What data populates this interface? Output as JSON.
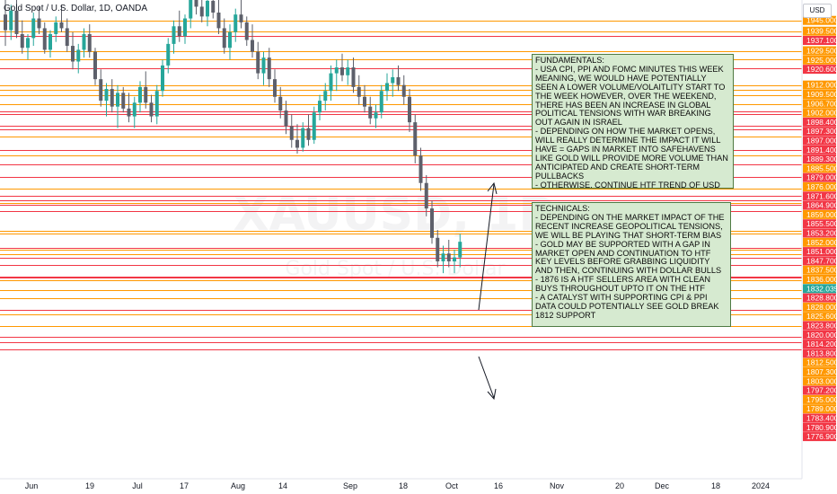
{
  "header": {
    "title": "Gold Spot / U.S. Dollar, 1D, OANDA",
    "currency": "USD"
  },
  "watermark": {
    "symbol": "XAUUSD, 1D",
    "name": "Gold Spot / U.S. Dollar"
  },
  "notes": {
    "fundamentals": "FUNDAMENTALS:\n- USA CPI, PPI AND FOMC MINUTES THIS WEEK MEANING, WE WOULD HAVE POTENTIALLY SEEN A LOWER VOLUME/VOLAITLITY START TO THE WEEK HOWEVER, OVER THE WEEKEND, THERE HAS BEEN AN INCREASE IN GLOBAL POLITICAL TENSIONS WITH WAR BREAKING OUT AGAIN IN ISRAEL\n- DEPENDING ON HOW THE MARKET OPENS, WILL REALLY DETERMINE THE IMPACT IT WILL HAVE = GAPS IN MARKET INTO SAFEHAVENS LIKE GOLD WILL PROVIDE MORE VOLUME THAN ANTICIPATED AND CREATE SHORT-TERM PULLBACKS\n- OTHERWISE, CONTINUE HTF TREND OF USD BULLS",
    "technicals": "TECHNICALS:\n- DEPENDING ON THE MARKET IMPACT OF THE RECENT INCREASE GEOPOLITICAL TENSIONS, WE WILL BE PLAYING THAT SHORT-TERM BIAS\n- GOLD MAY BE SUPPORTED WITH A GAP IN MARKET OPEN AND CONTINUATION TO HTF KEY LEVELS BEFORE GRABBING LIQUIDITY AND THEN, CONTINUING WITH DOLLAR BULLS\n- 1876 IS A HTF SELLERS AREA WITH CLEAN BUYS THROUGHOUT UPTO IT ON THE HTF\n- A CATALYST WITH SUPPORTING CPI & PPI DATA COULD POTENTIALLY SEE GOLD BREAK 1812 SUPPORT"
  },
  "chart_data": {
    "type": "candlestick",
    "title": "Gold Spot / U.S. Dollar, 1D, OANDA",
    "ylim": [
      1774,
      1960
    ],
    "price_labels": [
      "1945.000",
      "1939.500",
      "1937.100",
      "1929.500",
      "1925.000",
      "1920.600",
      "1912.000",
      "1909.500",
      "1906.700",
      "1902.000",
      "1898.400",
      "1897.300",
      "1897.000",
      "1891.400",
      "1889.300",
      "1885.500",
      "1879.000",
      "1876.000",
      "1871.600",
      "1864.900",
      "1859.000",
      "1855.500",
      "1853.200",
      "1852.000",
      "1851.000",
      "1847.700",
      "1837.500",
      "1836.000",
      "1832.035",
      "1828.800",
      "1828.000",
      "1825.600",
      "1823.800",
      "1820.000",
      "1814.200",
      "1813.800",
      "1812.500",
      "1807.300",
      "1803.000",
      "1797.200",
      "1795.000",
      "1789.000",
      "1783.400",
      "1780.900",
      "1776.900"
    ],
    "levels": [
      {
        "price": 1945.0,
        "color": "#ff9800"
      },
      {
        "price": 1939.5,
        "color": "#ff9800"
      },
      {
        "price": 1937.1,
        "color": "#f23645"
      },
      {
        "price": 1929.5,
        "color": "#ff9800"
      },
      {
        "price": 1925.0,
        "color": "#ff9800"
      },
      {
        "price": 1920.6,
        "color": "#f23645"
      },
      {
        "price": 1912.0,
        "color": "#ff9800"
      },
      {
        "price": 1909.5,
        "color": "#ff9800"
      },
      {
        "price": 1906.7,
        "color": "#ff9800"
      },
      {
        "price": 1902.0,
        "color": "#ff9800"
      },
      {
        "price": 1898.4,
        "color": "#f23645"
      },
      {
        "price": 1897.3,
        "color": "#f23645"
      },
      {
        "price": 1897.0,
        "color": "#f23645"
      },
      {
        "price": 1891.4,
        "color": "#f23645"
      },
      {
        "price": 1889.3,
        "color": "#f23645"
      },
      {
        "price": 1885.5,
        "color": "#ff9800"
      },
      {
        "price": 1879.0,
        "color": "#f23645"
      },
      {
        "price": 1876.0,
        "color": "#ff9800"
      },
      {
        "price": 1871.6,
        "color": "#f23645"
      },
      {
        "price": 1864.9,
        "color": "#f23645"
      },
      {
        "price": 1859.0,
        "color": "#ff9800"
      },
      {
        "price": 1855.5,
        "color": "#f23645"
      },
      {
        "price": 1853.2,
        "color": "#f23645"
      },
      {
        "price": 1852.0,
        "color": "#ff9800"
      },
      {
        "price": 1851.0,
        "color": "#f23645"
      },
      {
        "price": 1847.7,
        "color": "#f23645"
      },
      {
        "price": 1837.5,
        "color": "#ff9800"
      },
      {
        "price": 1836.0,
        "color": "#ff9800"
      },
      {
        "price": 1828.8,
        "color": "#f23645"
      },
      {
        "price": 1828.0,
        "color": "#ff9800"
      },
      {
        "price": 1825.6,
        "color": "#ff9800"
      },
      {
        "price": 1823.8,
        "color": "#f23645"
      },
      {
        "price": 1820.0,
        "color": "#f23645"
      },
      {
        "price": 1814.2,
        "color": "#f23645"
      },
      {
        "price": 1813.8,
        "color": "#f23645"
      },
      {
        "price": 1812.5,
        "color": "#ff9800"
      },
      {
        "price": 1807.3,
        "color": "#ff9800"
      },
      {
        "price": 1803.0,
        "color": "#ff9800"
      },
      {
        "price": 1797.2,
        "color": "#f23645"
      },
      {
        "price": 1795.0,
        "color": "#ff9800"
      },
      {
        "price": 1789.0,
        "color": "#ff9800"
      },
      {
        "price": 1783.4,
        "color": "#f23645"
      },
      {
        "price": 1780.9,
        "color": "#f23645"
      },
      {
        "price": 1776.9,
        "color": "#f23645"
      }
    ],
    "current_price": {
      "value": 1832.035,
      "label": "1832.035",
      "color": "#26a69a"
    },
    "x_ticks": [
      "Jun",
      "19",
      "Jul",
      "17",
      "Aug",
      "14",
      "Sep",
      "18",
      "Oct",
      "16",
      "Nov",
      "20",
      "Dec",
      "18",
      "2024"
    ],
    "up_color": "#26a69a",
    "down_color": "#5d606b",
    "forecast_arrows_color": "#131722",
    "level_label_colors": {
      "orange": "#ff9800",
      "red": "#f23645"
    }
  }
}
